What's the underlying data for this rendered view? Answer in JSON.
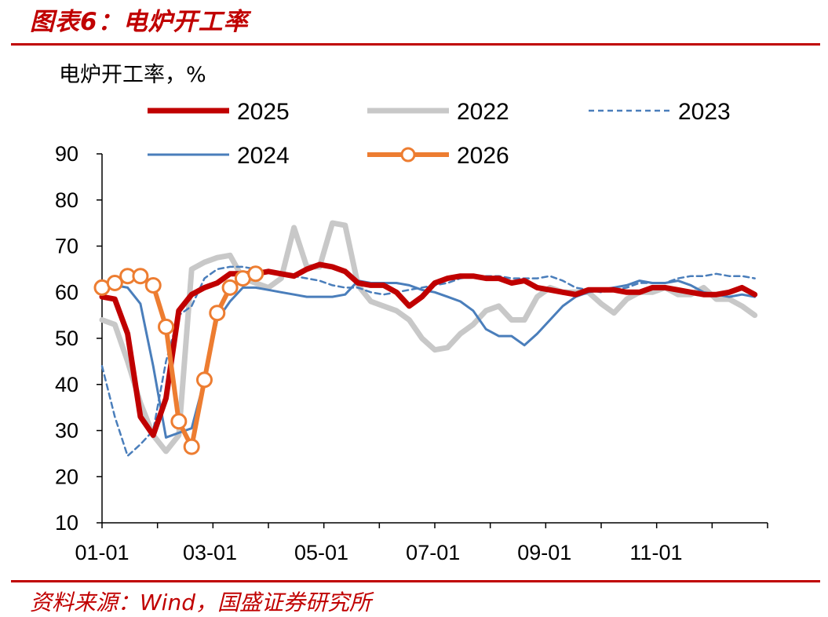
{
  "header": {
    "title": "图表6：电炉开工率"
  },
  "footer": {
    "source": "资料来源：Wind，国盛证券研究所"
  },
  "chart_data": {
    "type": "line",
    "ylabel": "电炉开工率，%",
    "ylim": [
      10,
      90
    ],
    "yticks": [
      10,
      20,
      30,
      40,
      50,
      60,
      70,
      80,
      90
    ],
    "xlim_week": [
      1,
      53
    ],
    "xticks": [
      {
        "label": "01-01",
        "week": 1
      },
      {
        "label": "03-01",
        "week": 9.43
      },
      {
        "label": "05-01",
        "week": 18.14
      },
      {
        "label": "07-01",
        "week": 26.86
      },
      {
        "label": "09-01",
        "week": 35.57
      },
      {
        "label": "11-01",
        "week": 44.29
      }
    ],
    "x_unit": "week of year",
    "grid": false,
    "legend_position": "top",
    "series": [
      {
        "name": "2025",
        "color": "#c00000",
        "style": "solid-thick",
        "x": [
          1,
          2,
          3,
          4,
          5,
          6,
          7,
          8,
          9,
          10,
          11,
          12,
          13,
          14,
          15,
          16,
          17,
          18,
          19,
          20,
          21,
          22,
          23,
          24,
          25,
          26,
          27,
          28,
          29,
          30,
          31,
          32,
          33,
          34,
          35,
          36,
          37,
          38,
          39,
          40,
          41,
          42,
          43,
          44,
          45,
          46,
          47,
          48,
          49,
          50,
          51,
          52
        ],
        "y": [
          59,
          58.5,
          51,
          33,
          29,
          37,
          56,
          59.5,
          61,
          62,
          64,
          64,
          64,
          64.5,
          64,
          63.5,
          65,
          66,
          65.5,
          64.5,
          62,
          61.5,
          61.5,
          60,
          57,
          59,
          62,
          63,
          63.5,
          63.5,
          63,
          63,
          62,
          62.5,
          61,
          60.5,
          60,
          59.5,
          60.5,
          60.5,
          60.5,
          60,
          60,
          61,
          61,
          60.5,
          60,
          59.5,
          59.5,
          60,
          61,
          59.5
        ]
      },
      {
        "name": "2022",
        "color": "#c8c8c8",
        "style": "solid-thick",
        "x": [
          1,
          2,
          3,
          4,
          5,
          6,
          7,
          8,
          9,
          10,
          11,
          12,
          13,
          14,
          15,
          16,
          17,
          18,
          19,
          20,
          21,
          22,
          23,
          24,
          25,
          26,
          27,
          28,
          29,
          30,
          31,
          32,
          33,
          34,
          35,
          36,
          37,
          38,
          39,
          40,
          41,
          42,
          43,
          44,
          45,
          46,
          47,
          48,
          49,
          50,
          51,
          52
        ],
        "y": [
          54,
          53,
          45,
          36,
          29,
          25.5,
          29,
          65,
          66.5,
          67.5,
          68,
          63,
          62,
          61,
          63,
          74,
          65.5,
          65.5,
          75,
          74.5,
          61.5,
          58,
          57,
          56,
          54,
          50,
          47.5,
          48,
          51,
          53,
          56,
          57,
          54,
          54,
          59,
          61,
          60,
          60,
          60,
          57.5,
          55.5,
          58.5,
          60,
          60,
          61,
          59.5,
          59.5,
          61,
          58.5,
          58.5,
          57,
          55
        ]
      },
      {
        "name": "2023",
        "color": "#4a7ebb",
        "style": "dashed",
        "x": [
          1,
          2,
          3,
          4,
          5,
          6,
          7,
          8,
          9,
          10,
          11,
          12,
          13,
          14,
          15,
          16,
          17,
          18,
          19,
          20,
          21,
          22,
          23,
          24,
          25,
          26,
          27,
          28,
          29,
          30,
          31,
          32,
          33,
          34,
          35,
          36,
          37,
          38,
          39,
          40,
          41,
          42,
          43,
          44,
          45,
          46,
          47,
          48,
          49,
          50,
          51,
          52
        ],
        "y": [
          44,
          33,
          24.5,
          27,
          30,
          45,
          55,
          57,
          63,
          65,
          65.5,
          65.5,
          65,
          64.5,
          64,
          63.5,
          63,
          62.5,
          61.5,
          61,
          61,
          60,
          59.5,
          60,
          60.5,
          61,
          61.5,
          62,
          63,
          63.5,
          63.5,
          63.5,
          63,
          63,
          63,
          63.5,
          62.5,
          61,
          60.5,
          60,
          60.5,
          61,
          62,
          62,
          62,
          63,
          63.5,
          63.5,
          64,
          63.5,
          63.5,
          63
        ]
      },
      {
        "name": "2024",
        "color": "#4a7ebb",
        "style": "solid-thin",
        "x": [
          1,
          2,
          3,
          4,
          5,
          6,
          7,
          8,
          9,
          10,
          11,
          12,
          13,
          14,
          15,
          16,
          17,
          18,
          19,
          20,
          21,
          22,
          23,
          24,
          25,
          26,
          27,
          28,
          29,
          30,
          31,
          32,
          33,
          34,
          35,
          36,
          37,
          38,
          39,
          40,
          41,
          42,
          43,
          44,
          45,
          46,
          47,
          48,
          49,
          50,
          51,
          52
        ],
        "y": [
          61,
          61.5,
          61,
          57.5,
          44,
          28.5,
          29.5,
          30.5,
          41,
          54,
          58,
          61,
          61,
          60.5,
          60,
          59.5,
          59,
          59,
          59,
          59.5,
          62.5,
          62,
          62,
          62,
          61.5,
          60.5,
          60,
          59,
          58,
          56,
          52,
          50.5,
          50.5,
          48.5,
          51,
          54,
          57,
          59,
          60,
          60.5,
          61,
          61.5,
          62.5,
          62,
          62,
          62.5,
          61.5,
          60,
          59.5,
          59,
          59.5,
          59
        ]
      },
      {
        "name": "2026",
        "color": "#ed7d31",
        "style": "solid-markers",
        "x": [
          1,
          2,
          3,
          4,
          5,
          6,
          7,
          8,
          9,
          10,
          11,
          12,
          13
        ],
        "y": [
          61,
          62,
          63.5,
          63.5,
          61.5,
          52.5,
          32,
          26.5,
          41,
          55.5,
          61,
          63,
          64
        ]
      }
    ]
  }
}
